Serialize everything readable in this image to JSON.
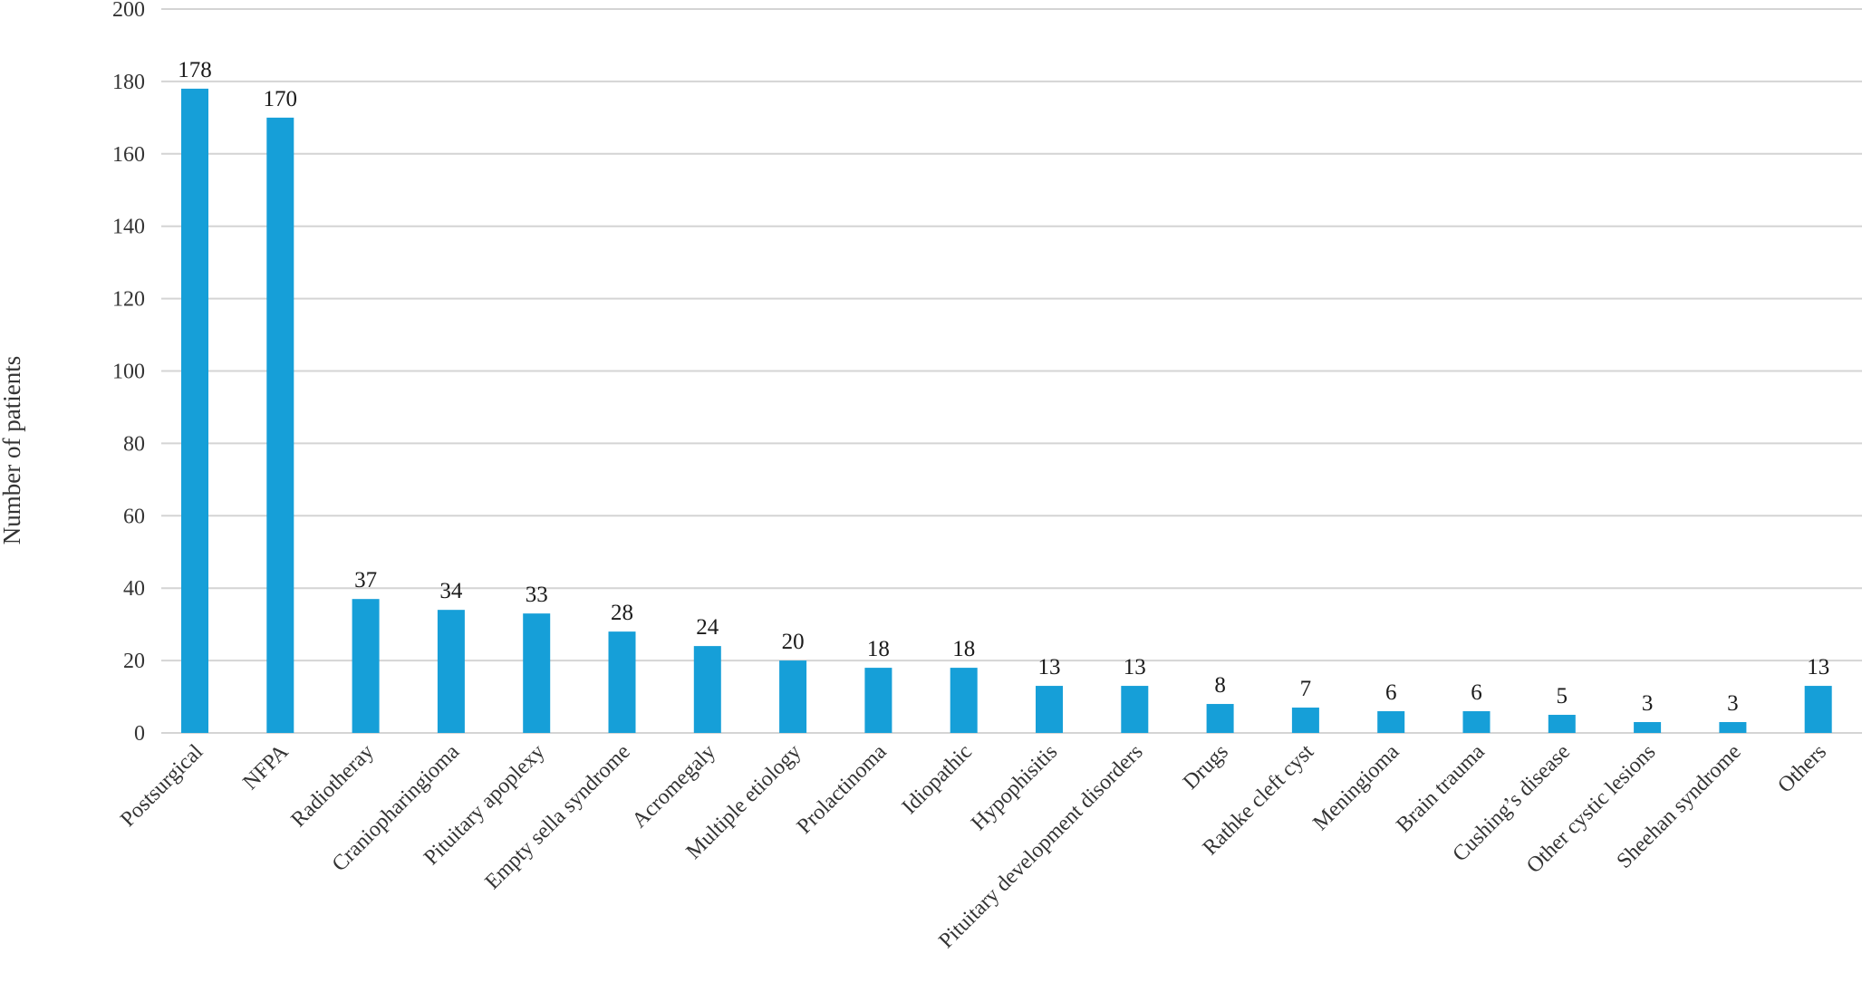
{
  "chart_data": {
    "type": "bar",
    "title": "",
    "xlabel": "",
    "ylabel": "Number of patients",
    "ylim": [
      0,
      200
    ],
    "yticks": [
      0,
      20,
      40,
      60,
      80,
      100,
      120,
      140,
      160,
      180,
      200
    ],
    "grid": true,
    "legend": "none",
    "bar_color": "#169fd8",
    "categories": [
      "Postsurgical",
      "NFPA",
      "Radiotheray",
      "Craniopharingioma",
      "Pituitary apoplexy",
      "Empty sella syndrome",
      "Acromegaly",
      "Multiple etiology",
      "Prolactinoma",
      "Idiopathic",
      "Hypophisitis",
      "Pituitary development disorders",
      "Drugs",
      "Rathke cleft cyst",
      "Meningioma",
      "Brain trauma",
      "Cushing’s disease",
      "Other cystic lesions",
      "Sheehan syndrome",
      "Others"
    ],
    "values": [
      178,
      170,
      37,
      34,
      33,
      28,
      24,
      20,
      18,
      18,
      13,
      13,
      8,
      7,
      6,
      6,
      5,
      3,
      3,
      13
    ]
  }
}
